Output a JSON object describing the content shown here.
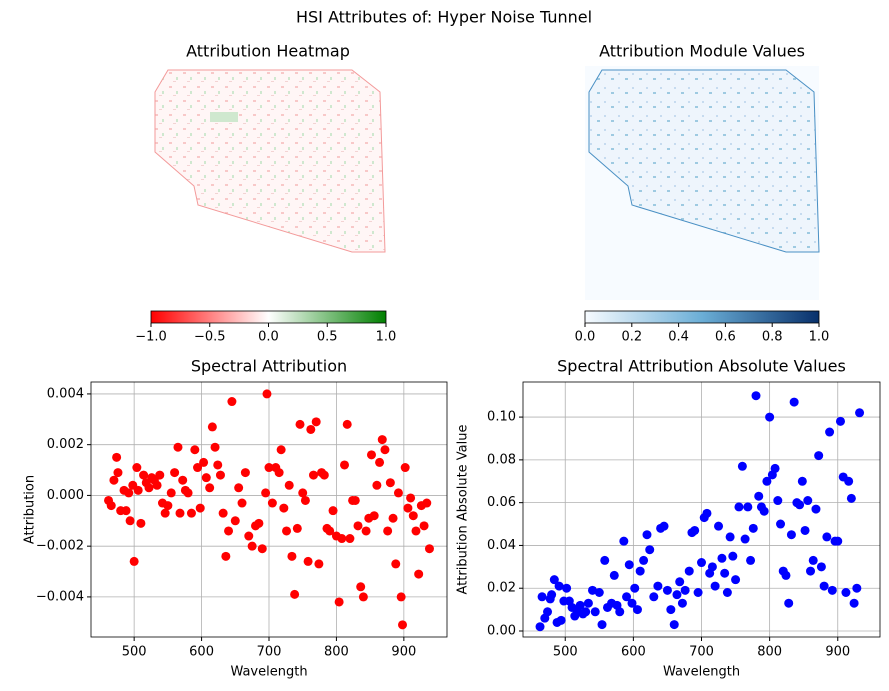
{
  "title": "HSI Attributes of: Hyper Noise Tunnel",
  "chart_data": [
    {
      "type": "heatmap",
      "title": "Attribution Heatmap",
      "cmap": [
        "#ff0000",
        "#ffffff",
        "#008000"
      ],
      "xlim": [
        -1,
        1
      ],
      "xticks": [
        {
          "value": -1,
          "label": "−1.0"
        },
        {
          "value": -0.5,
          "label": "−0.5"
        },
        {
          "value": 0,
          "label": "0.0"
        },
        0.5,
        {
          "value": 1,
          "label": "1.0"
        }
      ]
    },
    {
      "type": "heatmap",
      "title": "Attribution Module Values",
      "cmap": [
        "#f7fbff",
        "#6baed6",
        "#08306b"
      ],
      "xlim": [
        0,
        1
      ],
      "xticks": [
        {
          "value": 0,
          "label": "0.0"
        },
        0.2,
        0.4,
        0.6,
        0.8,
        {
          "value": 1,
          "label": "1.0"
        }
      ]
    },
    {
      "type": "scatter",
      "title": "Spectral Attribution",
      "xlabel": "Wavelength",
      "ylabel": "Attribution",
      "color": "#ff0000",
      "grid": true,
      "xlim": [
        436,
        964
      ],
      "xticks": [
        500,
        600,
        700,
        800,
        900
      ],
      "ylim": [
        -0.00558,
        0.00447
      ],
      "yticks": [
        {
          "value": -0.004,
          "label": "−0.004"
        },
        {
          "value": -0.002,
          "label": "−0.002"
        },
        {
          "value": 0,
          "label": "0.000"
        },
        0.002,
        0.004
      ],
      "x": [
        462,
        466,
        470,
        474,
        476,
        480,
        485,
        488,
        492,
        494,
        498,
        500,
        504,
        506,
        510,
        514,
        518,
        522,
        526,
        530,
        534,
        538,
        542,
        546,
        550,
        555,
        560,
        565,
        568,
        572,
        576,
        580,
        585,
        590,
        594,
        598,
        603,
        607,
        612,
        616,
        620,
        624,
        628,
        632,
        636,
        640,
        645,
        650,
        655,
        660,
        665,
        670,
        675,
        680,
        685,
        690,
        695,
        697,
        700,
        705,
        710,
        715,
        718,
        722,
        726,
        730,
        734,
        738,
        742,
        746,
        750,
        754,
        758,
        762,
        766,
        770,
        774,
        778,
        782,
        786,
        790,
        795,
        800,
        804,
        808,
        812,
        816,
        820,
        824,
        828,
        832,
        836,
        840,
        844,
        848,
        852,
        856,
        860,
        864,
        868,
        872,
        876,
        880,
        884,
        888,
        892,
        896,
        898,
        902,
        906,
        910,
        914,
        918,
        922,
        926,
        930,
        934,
        938
      ],
      "values": [
        -0.0002,
        -0.0004,
        0.0006,
        0.0015,
        0.0009,
        -0.0006,
        0.0002,
        -0.0006,
        0.0001,
        -0.001,
        0.0004,
        -0.0026,
        0.0011,
        0.0002,
        -0.0011,
        0.0008,
        0.0005,
        0.0003,
        0.0007,
        0.0006,
        0.0004,
        0.0008,
        -0.0003,
        -0.0007,
        -0.0004,
        0.0001,
        0.0009,
        0.0019,
        -0.0007,
        0.0006,
        0.0002,
        0.0001,
        -0.0007,
        0.0018,
        0.0011,
        -0.0005,
        0.0013,
        0.0007,
        0.0003,
        0.0027,
        0.0019,
        0.0012,
        0.0008,
        -0.0007,
        -0.0024,
        -0.0014,
        0.0037,
        -0.001,
        0.0003,
        -0.0003,
        0.0009,
        -0.0016,
        -0.002,
        -0.0012,
        -0.0011,
        -0.0021,
        0.0001,
        0.004,
        0.0011,
        -0.0003,
        0.0011,
        0.0009,
        0.0018,
        -0.0005,
        -0.0014,
        0.0004,
        -0.0024,
        -0.0039,
        -0.0013,
        0.0028,
        0.0001,
        -0.0002,
        -0.0026,
        0.0026,
        0.0008,
        0.0029,
        -0.0027,
        0.0009,
        0.0008,
        -0.0013,
        -0.0014,
        -0.0006,
        -0.0016,
        -0.0042,
        -0.0017,
        0.0012,
        0.0028,
        -0.0017,
        -0.0002,
        -0.0002,
        -0.0012,
        -0.0036,
        -0.004,
        -0.0014,
        -0.0009,
        0.0016,
        -0.0008,
        0.0004,
        0.0013,
        0.0022,
        0.0018,
        -0.0014,
        0.0005,
        -0.0009,
        -0.0027,
        0.0001,
        -0.004,
        -0.0051,
        0.0011,
        -0.0005,
        -0.0001,
        -0.0008,
        -0.0014,
        -0.0031,
        -0.0004,
        -0.0012,
        -0.0003,
        -0.0021
      ]
    },
    {
      "type": "scatter",
      "title": "Spectral Attribution Absolute Values",
      "xlabel": "Wavelength",
      "ylabel": "Attribution Absolute Value",
      "color": "#0000ff",
      "grid": true,
      "xlim": [
        438,
        962
      ],
      "xticks": [
        500,
        600,
        700,
        800,
        900
      ],
      "ylim": [
        -0.0028,
        0.1164
      ],
      "yticks": [
        {
          "value": 0,
          "label": "0.00"
        },
        0.02,
        0.04,
        0.06,
        0.08,
        {
          "value": 0.1,
          "label": "0.10"
        }
      ],
      "x": [
        463,
        466,
        470,
        474,
        478,
        480,
        484,
        488,
        491,
        494,
        498,
        502,
        506,
        510,
        514,
        518,
        522,
        526,
        530,
        534,
        540,
        544,
        550,
        554,
        558,
        562,
        568,
        572,
        576,
        580,
        586,
        590,
        594,
        598,
        602,
        606,
        610,
        615,
        620,
        624,
        630,
        636,
        640,
        645,
        650,
        655,
        660,
        664,
        668,
        672,
        676,
        682,
        686,
        690,
        695,
        700,
        704,
        708,
        712,
        716,
        720,
        725,
        730,
        734,
        738,
        742,
        746,
        750,
        755,
        760,
        764,
        768,
        772,
        776,
        780,
        784,
        788,
        792,
        796,
        800,
        804,
        808,
        812,
        816,
        820,
        824,
        828,
        832,
        836,
        840,
        844,
        848,
        852,
        856,
        860,
        864,
        868,
        872,
        876,
        880,
        884,
        888,
        892,
        896,
        900,
        904,
        908,
        912,
        916,
        920,
        924,
        928,
        932
      ],
      "values": [
        0.002,
        0.016,
        0.006,
        0.009,
        0.015,
        0.017,
        0.024,
        0.004,
        0.021,
        0.005,
        0.014,
        0.02,
        0.014,
        0.011,
        0.007,
        0.009,
        0.012,
        0.008,
        0.009,
        0.013,
        0.019,
        0.009,
        0.018,
        0.003,
        0.033,
        0.011,
        0.013,
        0.026,
        0.012,
        0.009,
        0.042,
        0.016,
        0.031,
        0.013,
        0.02,
        0.01,
        0.028,
        0.033,
        0.045,
        0.038,
        0.016,
        0.021,
        0.048,
        0.049,
        0.019,
        0.01,
        0.003,
        0.017,
        0.023,
        0.013,
        0.019,
        0.028,
        0.046,
        0.047,
        0.018,
        0.032,
        0.053,
        0.055,
        0.027,
        0.03,
        0.021,
        0.049,
        0.034,
        0.027,
        0.018,
        0.044,
        0.035,
        0.024,
        0.058,
        0.077,
        0.043,
        0.058,
        0.033,
        0.048,
        0.11,
        0.063,
        0.058,
        0.056,
        0.07,
        0.1,
        0.073,
        0.076,
        0.061,
        0.05,
        0.028,
        0.026,
        0.013,
        0.045,
        0.107,
        0.06,
        0.059,
        0.07,
        0.047,
        0.061,
        0.028,
        0.033,
        0.057,
        0.082,
        0.03,
        0.021,
        0.044,
        0.093,
        0.019,
        0.042,
        0.042,
        0.098,
        0.072,
        0.018,
        0.07,
        0.062,
        0.013,
        0.02,
        0.102
      ]
    }
  ]
}
